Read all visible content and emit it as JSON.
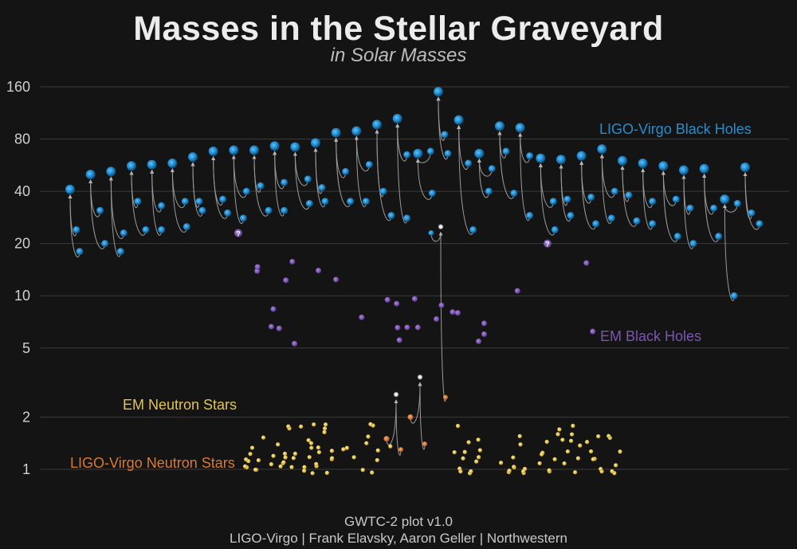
{
  "chart_data": {
    "type": "scatter",
    "title": "Masses in the Stellar Graveyard",
    "subtitle": "in Solar Masses",
    "yscale": "log",
    "ylim": [
      0.72,
      190
    ],
    "yticks": [
      160,
      80,
      40,
      20,
      10,
      5,
      2,
      1
    ],
    "grid": true,
    "colors": {
      "ligo_bh": "#2a8fd0",
      "em_bh": "#7a4db0",
      "em_ns": "#e8c64a",
      "ligo_ns": "#d9782e",
      "arrow": "#9a9a9a",
      "unknown": "#d0d0d0"
    },
    "series": [
      {
        "name": "LIGO-Virgo Black Holes",
        "mergers": [
          {
            "primary": 24,
            "secondary": 18,
            "remnant": 41
          },
          {
            "primary": 31,
            "secondary": 20,
            "remnant": 50
          },
          {
            "primary": 23,
            "secondary": 18,
            "remnant": 52
          },
          {
            "primary": 35,
            "secondary": 24,
            "remnant": 56
          },
          {
            "primary": 33,
            "secondary": 24,
            "remnant": 57
          },
          {
            "primary": 35,
            "secondary": 25,
            "remnant": 58
          },
          {
            "primary": 35,
            "secondary": 31,
            "remnant": 63
          },
          {
            "primary": 36,
            "secondary": 30,
            "remnant": 68
          },
          {
            "primary": 40,
            "secondary": 28,
            "remnant": 69
          },
          {
            "primary": 43,
            "secondary": 31,
            "remnant": 69
          },
          {
            "primary": 45,
            "secondary": 31,
            "remnant": 73
          },
          {
            "primary": 47,
            "secondary": 34,
            "remnant": 72
          },
          {
            "primary": 42,
            "secondary": 35,
            "remnant": 76
          },
          {
            "primary": 52,
            "secondary": 35,
            "remnant": 87
          },
          {
            "primary": 57,
            "secondary": 35,
            "remnant": 89
          },
          {
            "primary": 40,
            "secondary": 29,
            "remnant": 97
          },
          {
            "primary": 65,
            "secondary": 28,
            "remnant": 105
          },
          {
            "primary": 68,
            "secondary": 39,
            "remnant": 66
          },
          {
            "primary": 85,
            "secondary": 66,
            "remnant": 150
          },
          {
            "primary": 58,
            "secondary": 24,
            "remnant": 103
          },
          {
            "primary": 54,
            "secondary": 40,
            "remnant": 66
          },
          {
            "primary": 68,
            "secondary": 39,
            "remnant": 95
          },
          {
            "primary": 64,
            "secondary": 29,
            "remnant": 93
          },
          {
            "primary": 35,
            "secondary": 24,
            "remnant": 62
          },
          {
            "primary": 36,
            "secondary": 29,
            "remnant": 61
          },
          {
            "primary": 37,
            "secondary": 26,
            "remnant": 64
          },
          {
            "primary": 40,
            "secondary": 28,
            "remnant": 70
          },
          {
            "primary": 38,
            "secondary": 27,
            "remnant": 60
          },
          {
            "primary": 35,
            "secondary": 26,
            "remnant": 58
          },
          {
            "primary": 36,
            "secondary": 22,
            "remnant": 56
          },
          {
            "primary": 32,
            "secondary": 20,
            "remnant": 53
          },
          {
            "primary": 32,
            "secondary": 22,
            "remnant": 54
          },
          {
            "primary": 34,
            "secondary": 10,
            "remnant": 36
          },
          {
            "primary": 30,
            "secondary": 26,
            "remnant": 55
          }
        ]
      },
      {
        "name": "LIGO-Virgo Neutron Stars",
        "mergers": [
          {
            "primary": 1.5,
            "secondary": 1.3,
            "remnant": 2.7
          },
          {
            "primary": 2.0,
            "secondary": 1.4,
            "remnant": 3.4
          },
          {
            "primary": 23,
            "secondary": 2.6,
            "remnant": 25
          }
        ]
      },
      {
        "name": "EM Black Holes",
        "count": 28,
        "mass_range": [
          5,
          16
        ]
      },
      {
        "name": "EM Neutron Stars",
        "count": 110,
        "mass_range": [
          0.95,
          2.2
        ]
      }
    ],
    "unknown_marker": "?"
  },
  "legend": {
    "ligo_bh": "LIGO-Virgo Black Holes",
    "em_bh": "EM Black Holes",
    "em_ns": "EM Neutron Stars",
    "ligo_ns": "LIGO-Virgo Neutron Stars"
  },
  "footer": {
    "line1": "GWTC-2 plot v1.0",
    "line2": "LIGO-Virgo | Frank Elavsky, Aaron Geller | Northwestern"
  }
}
